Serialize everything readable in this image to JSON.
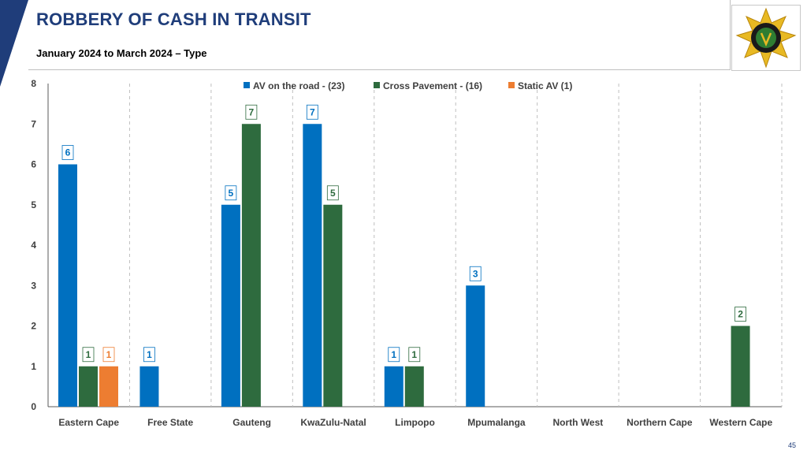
{
  "header": {
    "title": "ROBBERY OF CASH IN TRANSIT",
    "subtitle": "January 2024 to March 2024 – Type"
  },
  "logo": {
    "icon": "saps-star-badge-icon",
    "colors": {
      "star": "#e8b923",
      "shield": "#2e7d32",
      "ring": "#1a1a1a"
    }
  },
  "page_number": "45",
  "chart_data": {
    "type": "bar",
    "categories": [
      "Eastern Cape",
      "Free State",
      "Gauteng",
      "KwaZulu-Natal",
      "Limpopo",
      "Mpumalanga",
      "North West",
      "Northern Cape",
      "Western Cape"
    ],
    "series": [
      {
        "name": "AV on the road - (23)",
        "color": "#0070c0",
        "values": [
          6,
          1,
          5,
          7,
          1,
          3,
          0,
          0,
          0
        ]
      },
      {
        "name": "Cross Pavement - (16)",
        "color": "#2e6b3e",
        "values": [
          1,
          0,
          7,
          5,
          1,
          0,
          0,
          0,
          2
        ]
      },
      {
        "name": "Static AV (1)",
        "color": "#ed7d31",
        "values": [
          1,
          0,
          0,
          0,
          0,
          0,
          0,
          0,
          0
        ]
      }
    ],
    "ylim": [
      0,
      8
    ],
    "yticks": [
      "0",
      "1",
      "2",
      "3",
      "4",
      "5",
      "6",
      "7",
      "8"
    ],
    "xlabel": "",
    "ylabel": "",
    "legend_position": "top-center",
    "category_separators": "dashed",
    "data_labels": true
  }
}
